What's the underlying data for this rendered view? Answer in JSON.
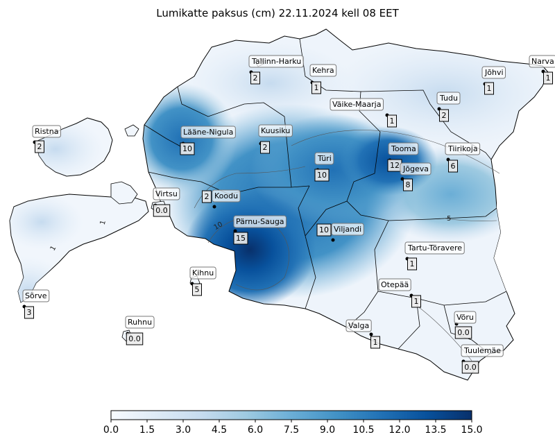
{
  "title": "Lumikatte paksus (cm) 22.11.2024 kell 08 EET",
  "colorbar": {
    "min": 0.0,
    "max": 15.0,
    "ticks": [
      "0.0",
      "1.5",
      "3.0",
      "4.5",
      "6.0",
      "7.5",
      "9.0",
      "10.5",
      "12.0",
      "13.5",
      "15.0"
    ],
    "colors": [
      "#f7fbff",
      "#deebf7",
      "#c6dbef",
      "#9ecae1",
      "#6baed6",
      "#4292c6",
      "#2171b5",
      "#08519c",
      "#08306b"
    ]
  },
  "contour_labels": [
    "5",
    "10",
    "1",
    "1"
  ],
  "stations": [
    {
      "name": "Tallinn-Harku",
      "value": "2"
    },
    {
      "name": "Kehra",
      "value": "1"
    },
    {
      "name": "Narva",
      "value": "1"
    },
    {
      "name": "Jõhvi",
      "value": "1"
    },
    {
      "name": "Väike-Maarja",
      "value": "1"
    },
    {
      "name": "Tudu",
      "value": "2"
    },
    {
      "name": "Ristna",
      "value": "2"
    },
    {
      "name": "Lääne-Nigula",
      "value": "10"
    },
    {
      "name": "Kuusiku",
      "value": "2"
    },
    {
      "name": "Türi",
      "value": "10"
    },
    {
      "name": "Tooma",
      "value": "12"
    },
    {
      "name": "Tiirikoja",
      "value": "6"
    },
    {
      "name": "Jõgeva",
      "value": "8"
    },
    {
      "name": "Virtsu",
      "value": "0.0"
    },
    {
      "name": "Koodu",
      "value": "2"
    },
    {
      "name": "Pärnu-Sauga",
      "value": "15"
    },
    {
      "name": "Viljandi",
      "value": "10"
    },
    {
      "name": "Tartu-Tõravere",
      "value": "1"
    },
    {
      "name": "Kihnu",
      "value": "5"
    },
    {
      "name": "Otepää",
      "value": "1"
    },
    {
      "name": "Sõrve",
      "value": "3"
    },
    {
      "name": "Ruhnu",
      "value": "0.0"
    },
    {
      "name": "Valga",
      "value": "1"
    },
    {
      "name": "Võru",
      "value": "0.0"
    },
    {
      "name": "Tuulemäe",
      "value": "0.0"
    }
  ]
}
